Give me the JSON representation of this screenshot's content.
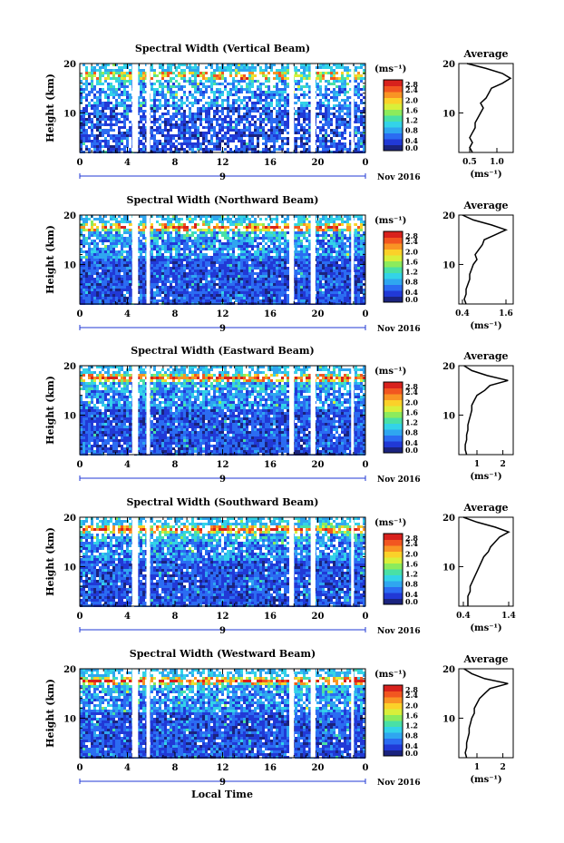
{
  "figure": {
    "common": {
      "y_label": "Height (km)",
      "y_ticks": [
        10,
        20
      ],
      "x_ticks": [
        "0",
        "4",
        "8",
        "12",
        "16",
        "20",
        "0"
      ],
      "date_label": "9",
      "month_label": "Nov 2016",
      "colorbar_unit": "(ms⁻¹)",
      "colorbar_ticks": [
        "2.8",
        "2.4",
        "2.0",
        "1.6",
        "1.2",
        "0.8",
        "0.4",
        "0.0"
      ],
      "avg_title": "Average",
      "avg_xlabel": "(ms⁻¹)",
      "x_axis_title": "Local Time"
    },
    "colors": {
      "scale": [
        "#1a237e",
        "#2139d6",
        "#2b6cf2",
        "#2fa6f0",
        "#33d3e8",
        "#49e0a6",
        "#8ceb5c",
        "#d9ef3a",
        "#fbd129",
        "#f99424",
        "#f25620",
        "#d8211c"
      ]
    }
  },
  "chart_data": [
    {
      "type": "heatmap",
      "title": "Spectral Width (Vertical Beam)",
      "ylabel": "Height (km)",
      "xlabel": "",
      "ylim": [
        2,
        20
      ],
      "xlim": [
        0,
        24
      ],
      "x_ticks": [
        0,
        4,
        8,
        12,
        16,
        20,
        24
      ],
      "data_gaps_hours": [
        [
          4.4,
          4.9
        ],
        [
          5.6,
          5.9
        ],
        [
          17.6,
          18.0
        ],
        [
          19.4,
          19.8
        ],
        [
          22.8,
          23.0
        ]
      ],
      "colorbar": {
        "unit": "(ms⁻¹)",
        "range": [
          0.0,
          2.8
        ],
        "ticks": [
          0.0,
          0.4,
          0.8,
          1.2,
          1.6,
          2.0,
          2.4,
          2.8
        ]
      },
      "average_profile": {
        "xlim": [
          0.3,
          1.3
        ],
        "x_ticks": [
          0.5,
          1.0
        ],
        "x_tick_labels": [
          "0.5",
          "1.0"
        ],
        "height_km": [
          2,
          3,
          4,
          5,
          6,
          7,
          8,
          9,
          10,
          11,
          12,
          13,
          14,
          15,
          16,
          17,
          18,
          19,
          20
        ],
        "width_ms": [
          0.55,
          0.5,
          0.55,
          0.5,
          0.55,
          0.6,
          0.6,
          0.65,
          0.7,
          0.75,
          0.7,
          0.8,
          0.85,
          0.9,
          1.1,
          1.25,
          1.1,
          0.8,
          0.45
        ]
      }
    },
    {
      "type": "heatmap",
      "title": "Spectral Width (Northward Beam)",
      "ylabel": "Height (km)",
      "xlabel": "",
      "ylim": [
        2,
        20
      ],
      "xlim": [
        0,
        24
      ],
      "x_ticks": [
        0,
        4,
        8,
        12,
        16,
        20,
        24
      ],
      "data_gaps_hours": [
        [
          4.4,
          4.9
        ],
        [
          5.6,
          5.9
        ],
        [
          17.6,
          18.0
        ],
        [
          19.4,
          19.8
        ],
        [
          22.8,
          23.0
        ]
      ],
      "colorbar": {
        "unit": "(ms⁻¹)",
        "range": [
          0.0,
          2.8
        ],
        "ticks": [
          0.0,
          0.4,
          0.8,
          1.2,
          1.6,
          2.0,
          2.4,
          2.8
        ]
      },
      "average_profile": {
        "xlim": [
          0.3,
          1.8
        ],
        "x_ticks": [
          0.4,
          1.6
        ],
        "x_tick_labels": [
          "0.4",
          "1.6"
        ],
        "height_km": [
          2,
          3,
          4,
          5,
          6,
          7,
          8,
          9,
          10,
          11,
          12,
          13,
          14,
          15,
          16,
          17,
          18,
          19,
          20
        ],
        "width_ms": [
          0.5,
          0.45,
          0.5,
          0.5,
          0.55,
          0.6,
          0.6,
          0.65,
          0.7,
          0.8,
          0.75,
          0.85,
          0.95,
          1.0,
          1.3,
          1.6,
          1.2,
          0.7,
          0.4
        ]
      }
    },
    {
      "type": "heatmap",
      "title": "Spectral Width (Eastward Beam)",
      "ylabel": "Height (km)",
      "xlabel": "",
      "ylim": [
        2,
        20
      ],
      "xlim": [
        0,
        24
      ],
      "x_ticks": [
        0,
        4,
        8,
        12,
        16,
        20,
        24
      ],
      "data_gaps_hours": [
        [
          4.4,
          4.9
        ],
        [
          5.6,
          5.9
        ],
        [
          17.6,
          18.0
        ],
        [
          19.4,
          19.8
        ],
        [
          22.8,
          23.0
        ]
      ],
      "colorbar": {
        "unit": "(ms⁻¹)",
        "range": [
          0.0,
          2.8
        ],
        "ticks": [
          0.0,
          0.4,
          0.8,
          1.2,
          1.6,
          2.0,
          2.4,
          2.8
        ]
      },
      "average_profile": {
        "xlim": [
          0.3,
          2.4
        ],
        "x_ticks": [
          1,
          2
        ],
        "x_tick_labels": [
          "1",
          "2"
        ],
        "height_km": [
          2,
          3,
          4,
          5,
          6,
          7,
          8,
          9,
          10,
          11,
          12,
          13,
          14,
          15,
          16,
          17,
          18,
          19,
          20
        ],
        "width_ms": [
          0.6,
          0.55,
          0.55,
          0.6,
          0.6,
          0.65,
          0.65,
          0.7,
          0.75,
          0.8,
          0.8,
          0.9,
          1.0,
          1.3,
          1.5,
          2.2,
          1.4,
          0.8,
          0.5
        ]
      }
    },
    {
      "type": "heatmap",
      "title": "Spectral Width (Southward Beam)",
      "ylabel": "Height (km)",
      "xlabel": "",
      "ylim": [
        2,
        20
      ],
      "xlim": [
        0,
        24
      ],
      "x_ticks": [
        0,
        4,
        8,
        12,
        16,
        20,
        24
      ],
      "data_gaps_hours": [
        [
          4.4,
          4.9
        ],
        [
          5.6,
          5.9
        ],
        [
          17.6,
          18.0
        ],
        [
          19.4,
          19.8
        ],
        [
          22.8,
          23.0
        ]
      ],
      "colorbar": {
        "unit": "(ms⁻¹)",
        "range": [
          0.0,
          2.8
        ],
        "ticks": [
          0.0,
          0.4,
          0.8,
          1.2,
          1.6,
          2.0,
          2.4,
          2.8
        ]
      },
      "average_profile": {
        "xlim": [
          0.3,
          1.5
        ],
        "x_ticks": [
          0.4,
          1.4
        ],
        "x_tick_labels": [
          "0.4",
          "1.4"
        ],
        "height_km": [
          2,
          3,
          4,
          5,
          6,
          7,
          8,
          9,
          10,
          11,
          12,
          13,
          14,
          15,
          16,
          17,
          18,
          19,
          20
        ],
        "width_ms": [
          0.5,
          0.5,
          0.5,
          0.55,
          0.55,
          0.6,
          0.65,
          0.7,
          0.75,
          0.8,
          0.85,
          0.95,
          1.0,
          1.1,
          1.2,
          1.4,
          1.1,
          0.7,
          0.4
        ]
      }
    },
    {
      "type": "heatmap",
      "title": "Spectral Width (Westward Beam)",
      "ylabel": "Height (km)",
      "xlabel": "Local Time",
      "ylim": [
        2,
        20
      ],
      "xlim": [
        0,
        24
      ],
      "x_ticks": [
        0,
        4,
        8,
        12,
        16,
        20,
        24
      ],
      "data_gaps_hours": [
        [
          4.4,
          4.9
        ],
        [
          5.6,
          5.9
        ],
        [
          17.6,
          18.0
        ],
        [
          19.4,
          19.8
        ],
        [
          22.8,
          23.0
        ]
      ],
      "colorbar": {
        "unit": "(ms⁻¹)",
        "range": [
          0.0,
          2.8
        ],
        "ticks": [
          0.0,
          0.4,
          0.8,
          1.2,
          1.6,
          2.0,
          2.4,
          2.8
        ]
      },
      "average_profile": {
        "xlim": [
          0.3,
          2.4
        ],
        "x_ticks": [
          1,
          2
        ],
        "x_tick_labels": [
          "1",
          "2"
        ],
        "height_km": [
          2,
          3,
          4,
          5,
          6,
          7,
          8,
          9,
          10,
          11,
          12,
          13,
          14,
          15,
          16,
          17,
          18,
          19,
          20
        ],
        "width_ms": [
          0.6,
          0.55,
          0.6,
          0.6,
          0.65,
          0.7,
          0.7,
          0.75,
          0.8,
          0.9,
          0.9,
          1.0,
          1.1,
          1.3,
          1.5,
          2.2,
          1.3,
          0.8,
          0.5
        ]
      }
    }
  ]
}
